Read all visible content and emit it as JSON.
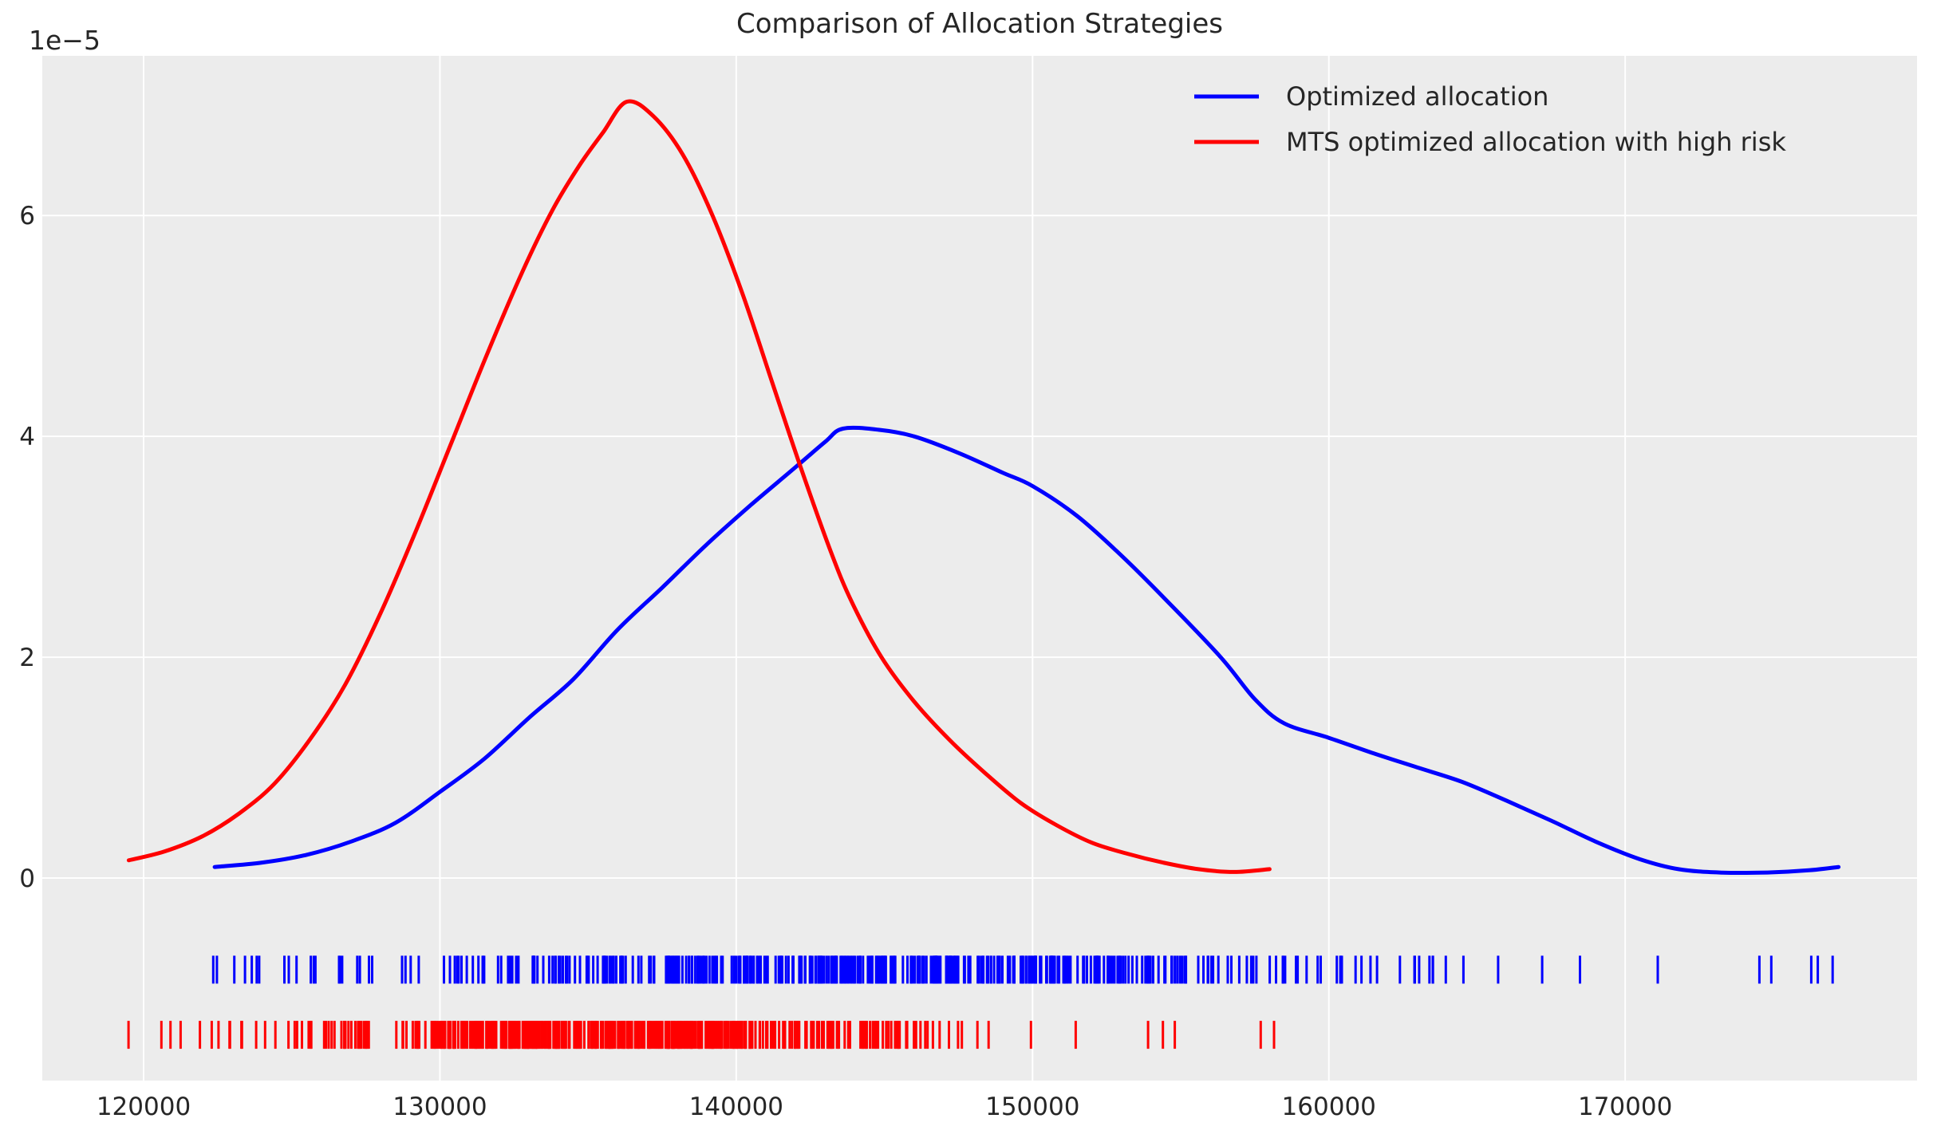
{
  "figure": {
    "title": "Comparison of Allocation Strategies",
    "offset_label": "1e−5",
    "background": "#ffffff",
    "plot_background": "#ececec",
    "grid_color": "#ffffff",
    "text_color": "#262626"
  },
  "legend": {
    "entries": [
      {
        "label": "Optimized allocation",
        "color": "#0000ff"
      },
      {
        "label": "MTS optimized allocation with high risk",
        "color": "#ff0000"
      }
    ]
  },
  "chart_data": {
    "type": "line",
    "title": "Comparison of Allocation Strategies",
    "xlabel": "",
    "ylabel": "",
    "y_offset_label": "1e−5",
    "grid": true,
    "legend_position": "upper right",
    "xlim": [
      116580,
      179860
    ],
    "ylim_e5": [
      -1.83,
      7.44
    ],
    "x_ticks": [
      120000,
      130000,
      140000,
      150000,
      160000,
      170000
    ],
    "y_ticks_e5": [
      0,
      2,
      4,
      6
    ],
    "series": [
      {
        "name": "Optimized allocation",
        "color": "#0000ff",
        "x": [
          122400,
          124000,
          125500,
          127000,
          128500,
          130000,
          131500,
          133000,
          134500,
          136000,
          137500,
          139000,
          140500,
          142000,
          143000,
          143600,
          144800,
          146000,
          147500,
          149000,
          150000,
          151500,
          153000,
          154500,
          156350,
          157500,
          158500,
          160000,
          161500,
          163000,
          164500,
          166000,
          167500,
          169000,
          170500,
          171800,
          173200,
          174800,
          176200,
          177200
        ],
        "y_e5": [
          0.1,
          0.14,
          0.21,
          0.33,
          0.5,
          0.78,
          1.08,
          1.45,
          1.8,
          2.25,
          2.63,
          3.02,
          3.38,
          3.72,
          3.95,
          4.07,
          4.06,
          4.0,
          3.85,
          3.67,
          3.55,
          3.28,
          2.92,
          2.52,
          2.0,
          1.62,
          1.4,
          1.27,
          1.13,
          1.0,
          0.87,
          0.7,
          0.52,
          0.33,
          0.17,
          0.08,
          0.05,
          0.05,
          0.07,
          0.1
        ]
      },
      {
        "name": "MTS optimized allocation with high risk",
        "color": "#ff0000",
        "x": [
          119500,
          120700,
          122000,
          123200,
          124400,
          125600,
          126800,
          128000,
          129200,
          130400,
          131600,
          132800,
          133800,
          134700,
          135500,
          136300,
          137200,
          138200,
          139200,
          140200,
          141200,
          142200,
          143200,
          143900,
          144900,
          146000,
          147200,
          148400,
          149600,
          150800,
          152000,
          153200,
          154400,
          155600,
          156800,
          158000
        ],
        "y_e5": [
          0.16,
          0.24,
          0.38,
          0.58,
          0.85,
          1.25,
          1.75,
          2.4,
          3.15,
          3.95,
          4.75,
          5.5,
          6.05,
          6.45,
          6.75,
          7.03,
          6.9,
          6.55,
          6.0,
          5.3,
          4.5,
          3.7,
          2.95,
          2.5,
          2.0,
          1.6,
          1.25,
          0.95,
          0.68,
          0.48,
          0.32,
          0.22,
          0.14,
          0.08,
          0.055,
          0.08
        ]
      }
    ],
    "rug": {
      "tick_height_e5": 0.253,
      "tracks": [
        {
          "name": "optimized-allocation-rug",
          "color": "#0000ff",
          "y_center_e5": -0.83,
          "count": 430,
          "mean": 144800,
          "sd": 9200,
          "min": 122350,
          "max": 169700,
          "extra_ticks": [
            122350,
            123650,
            123900,
            124900,
            125800,
            126700,
            127300,
            171100,
            174530,
            174930,
            176280,
            176500,
            177000
          ]
        },
        {
          "name": "mts-high-risk-rug",
          "color": "#ff0000",
          "y_center_e5": -1.42,
          "count": 430,
          "mean": 136300,
          "sd": 5600,
          "min": 119490,
          "max": 152500,
          "extra_ticks": [
            119490,
            120600,
            121250,
            121900,
            122300,
            122900,
            123300,
            123800,
            124100,
            153900,
            154400,
            154800,
            157700,
            158150
          ]
        }
      ]
    }
  }
}
